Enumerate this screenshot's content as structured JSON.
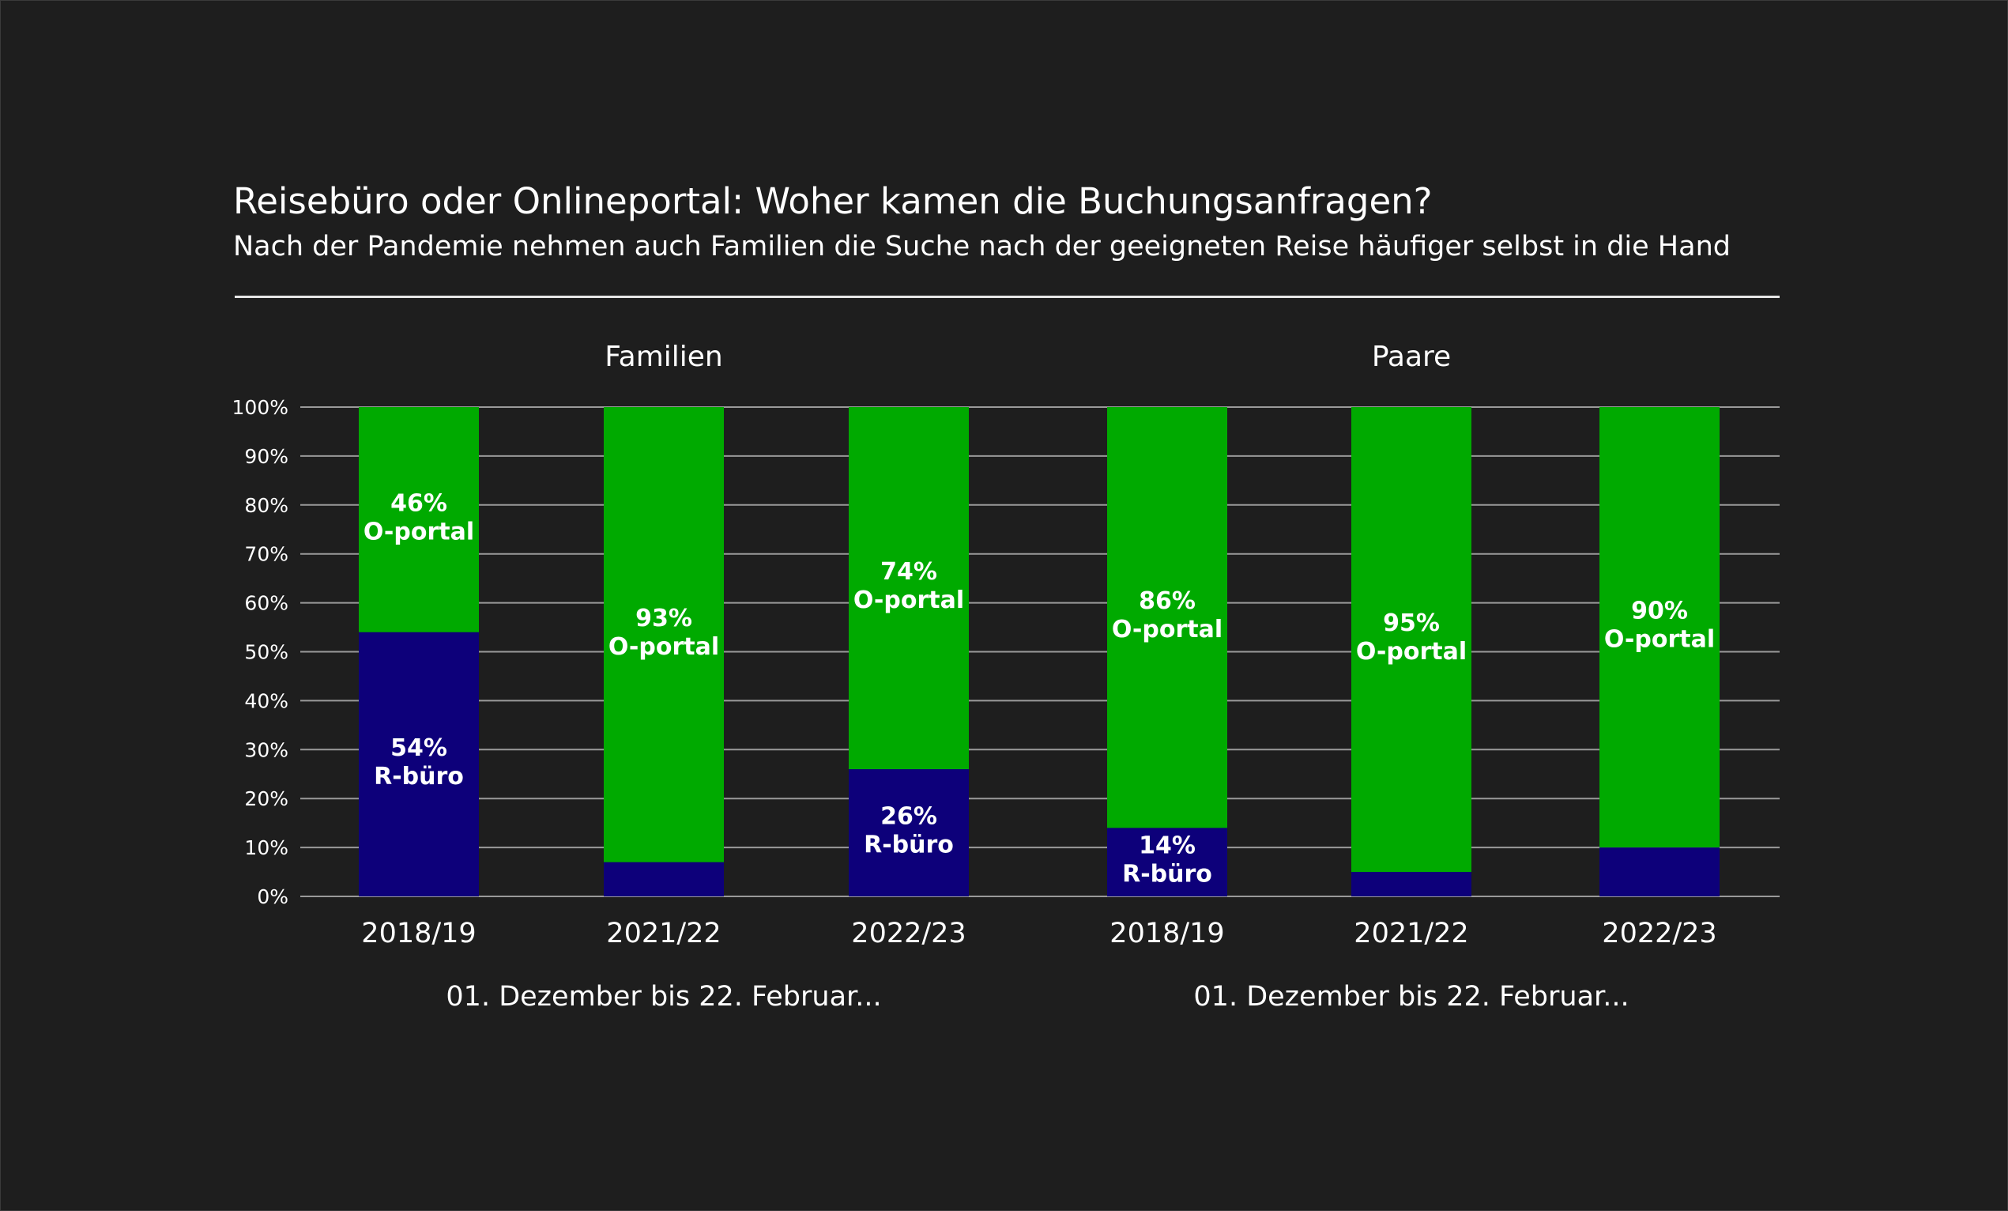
{
  "title": "Reisebüro oder Onlineportal: Woher kamen die Buchungsanfragen?",
  "subtitle": "Nach der Pandemie nehmen auch Familien die Suche nach der geeigneten Reise häufiger selbst in die Hand",
  "colors": {
    "background": "#1e1e1e",
    "online_portal": "#00aa00",
    "reisebuero": "#0d007a",
    "gridline": "#9a9a9a",
    "text": "#ffffff"
  },
  "chart_data": {
    "type": "bar",
    "stacked": true,
    "ylim": [
      0,
      100
    ],
    "yticks": [
      "0%",
      "10%",
      "20%",
      "30%",
      "40%",
      "50%",
      "60%",
      "70%",
      "80%",
      "90%",
      "100%"
    ],
    "grid": true,
    "groups": [
      {
        "name": "Familien",
        "sublabel": "01. Dezember bis 22. Februar...",
        "categories": [
          "2018/19",
          "2021/22",
          "2022/23"
        ],
        "reisebuero": [
          54,
          7,
          26
        ],
        "online_portal": [
          46,
          93,
          74
        ],
        "reisebuero_labels": [
          "54%\nR-büro",
          "",
          "26%\nR-büro"
        ],
        "online_portal_labels": [
          "46%\nO-portal",
          "93%\nO-portal",
          "74%\nO-portal"
        ]
      },
      {
        "name": "Paare",
        "sublabel": "01. Dezember bis 22. Februar...",
        "categories": [
          "2018/19",
          "2021/22",
          "2022/23"
        ],
        "reisebuero": [
          14,
          5,
          10
        ],
        "online_portal": [
          86,
          95,
          90
        ],
        "reisebuero_labels": [
          "14%\nR-büro",
          "",
          ""
        ],
        "online_portal_labels": [
          "86%\nO-portal",
          "95%\nO-portal",
          "90%\nO-portal"
        ]
      }
    ]
  }
}
